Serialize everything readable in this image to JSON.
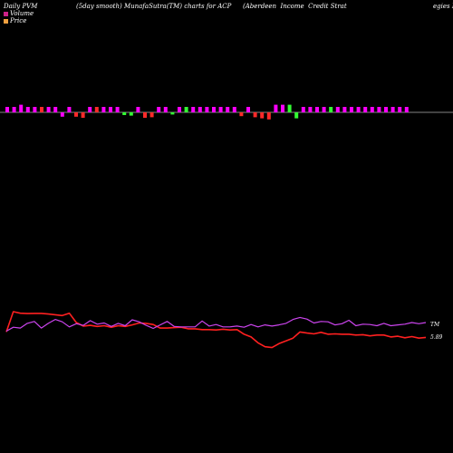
{
  "header": {
    "left": "Daily PVM",
    "middle": "(5day smooth) MunafaSutra(TM) charts for ACP",
    "right": "(Aberdeen  Income  Credit Strat",
    "cut": "egies I"
  },
  "legend": {
    "volume_label": "Volume",
    "price_label": "Price",
    "volume_color": "#cc2288",
    "price_color": "#f0a040"
  },
  "chart_data": {
    "type": "bar+line",
    "volume": {
      "colors": {
        "up": "#ff00ff",
        "down": "#ff2a2a",
        "neutral": "#33ff33"
      },
      "bars": [
        [
          1,
          "up"
        ],
        [
          1,
          "up"
        ],
        [
          1.4,
          "up"
        ],
        [
          1,
          "up"
        ],
        [
          1,
          "up"
        ],
        [
          1,
          "down"
        ],
        [
          1,
          "up"
        ],
        [
          1,
          "up"
        ],
        [
          -0.8,
          "up"
        ],
        [
          1,
          "up"
        ],
        [
          -0.8,
          "down"
        ],
        [
          -1,
          "down"
        ],
        [
          1,
          "up"
        ],
        [
          1,
          "down"
        ],
        [
          1,
          "up"
        ],
        [
          1,
          "up"
        ],
        [
          1,
          "up"
        ],
        [
          -0.5,
          "neutral"
        ],
        [
          -0.6,
          "neutral"
        ],
        [
          1,
          "up"
        ],
        [
          -1,
          "down"
        ],
        [
          -0.9,
          "down"
        ],
        [
          1,
          "up"
        ],
        [
          1,
          "up"
        ],
        [
          -0.4,
          "neutral"
        ],
        [
          1,
          "up"
        ],
        [
          1,
          "neutral"
        ],
        [
          1,
          "up"
        ],
        [
          1,
          "up"
        ],
        [
          1,
          "up"
        ],
        [
          1,
          "up"
        ],
        [
          1,
          "up"
        ],
        [
          1,
          "up"
        ],
        [
          1,
          "up"
        ],
        [
          -0.7,
          "down"
        ],
        [
          1,
          "up"
        ],
        [
          -0.9,
          "down"
        ],
        [
          -1.1,
          "down"
        ],
        [
          -1.3,
          "down"
        ],
        [
          1.4,
          "up"
        ],
        [
          1.4,
          "up"
        ],
        [
          1.4,
          "neutral"
        ],
        [
          -1.1,
          "neutral"
        ],
        [
          1,
          "up"
        ],
        [
          1,
          "up"
        ],
        [
          1,
          "up"
        ],
        [
          1,
          "up"
        ],
        [
          1,
          "neutral"
        ],
        [
          1,
          "up"
        ],
        [
          1,
          "up"
        ],
        [
          1,
          "up"
        ],
        [
          1,
          "up"
        ],
        [
          1,
          "up"
        ],
        [
          1,
          "up"
        ],
        [
          1,
          "up"
        ],
        [
          1,
          "up"
        ],
        [
          1,
          "up"
        ],
        [
          1,
          "up"
        ],
        [
          1,
          "up"
        ]
      ]
    },
    "series": [
      {
        "color": "#ff2020",
        "values": [
          48,
          100,
          96,
          95,
          95.5,
          95.5,
          94,
          92,
          90,
          96,
          72,
          63,
          65,
          62,
          64,
          60,
          64,
          62,
          66,
          71,
          70,
          67,
          58,
          58,
          59,
          60,
          56,
          56,
          54,
          54,
          53,
          55,
          53,
          54,
          42,
          35,
          20,
          10,
          8,
          18,
          25,
          32,
          48,
          45,
          43,
          47,
          42,
          43,
          42,
          42,
          40,
          41,
          38,
          40,
          40,
          35,
          37,
          33,
          36,
          32,
          34
        ]
      },
      {
        "color": "#cc44ee",
        "values": [
          50,
          60,
          58,
          70,
          75,
          58,
          70,
          80,
          74,
          61,
          69,
          65,
          77,
          68,
          71,
          62,
          70,
          64,
          79,
          74,
          65,
          57,
          66,
          75,
          62,
          61,
          61,
          61,
          76,
          63,
          67,
          61,
          61,
          63,
          60,
          67,
          61,
          66,
          63,
          66,
          70,
          80,
          85,
          81,
          71,
          75,
          74,
          66,
          69,
          78,
          64,
          68,
          67,
          64,
          70,
          64,
          66,
          68,
          72,
          69,
          72
        ]
      }
    ],
    "annotations": [
      "TM",
      "5.89"
    ]
  }
}
